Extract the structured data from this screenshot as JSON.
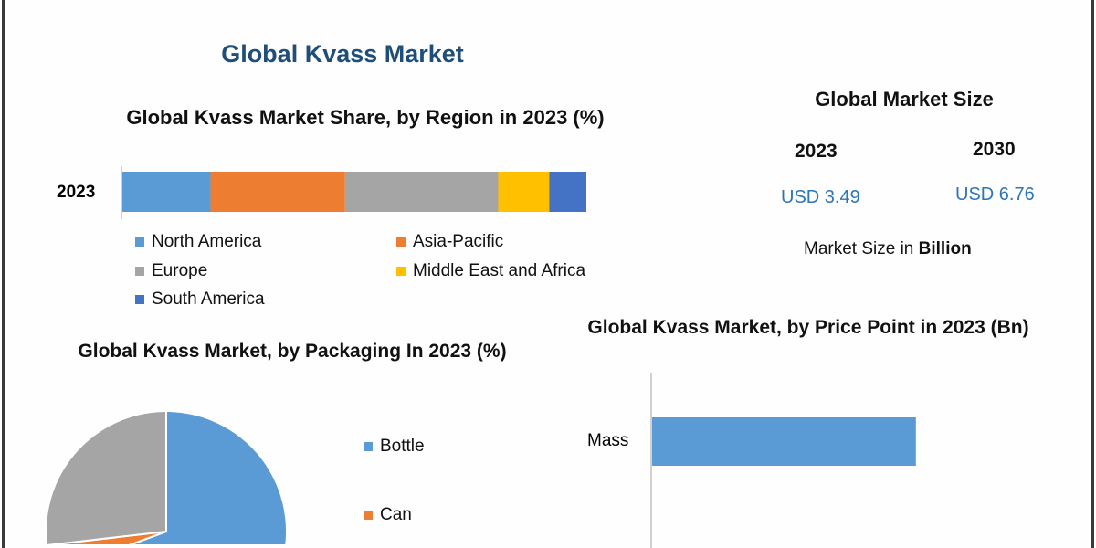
{
  "main_title": "Global Kvass Market",
  "market_size": {
    "title": "Global Market Size",
    "years": [
      "2023",
      "2030"
    ],
    "values": [
      "USD 3.49",
      "USD 6.76"
    ],
    "note_prefix": "Market Size in ",
    "note_bold": "Billion"
  },
  "chart_data": [
    {
      "type": "bar",
      "orientation": "horizontal-stacked",
      "title": "Global Kvass Market Share, by Region in 2023 (%)",
      "categories": [
        "2023"
      ],
      "series": [
        {
          "name": "North America",
          "values": [
            19
          ],
          "color": "#5b9bd5"
        },
        {
          "name": "Asia-Pacific",
          "values": [
            29
          ],
          "color": "#ed7d31"
        },
        {
          "name": "Europe",
          "values": [
            33
          ],
          "color": "#a5a5a5"
        },
        {
          "name": "Middle East and Africa",
          "values": [
            11
          ],
          "color": "#ffc000"
        },
        {
          "name": "South America",
          "values": [
            8
          ],
          "color": "#4472c4"
        }
      ],
      "legend": "bottom"
    },
    {
      "type": "pie",
      "title": "Global Kvass Market, by Packaging In 2023 (%)",
      "slices": [
        {
          "name": "Bottle",
          "value": 55,
          "color": "#5b9bd5"
        },
        {
          "name": "Can",
          "value": 18,
          "color": "#ed7d31"
        },
        {
          "value": 27,
          "color": "#a5a5a5"
        }
      ],
      "legend": "right"
    },
    {
      "type": "bar",
      "orientation": "horizontal",
      "title": "Global Kvass Market, by Price Point in 2023 (Bn)",
      "categories": [
        "Mass"
      ],
      "values": [
        2.0
      ],
      "xlim": [
        0,
        3.4
      ],
      "color": "#5b9bd5"
    }
  ]
}
